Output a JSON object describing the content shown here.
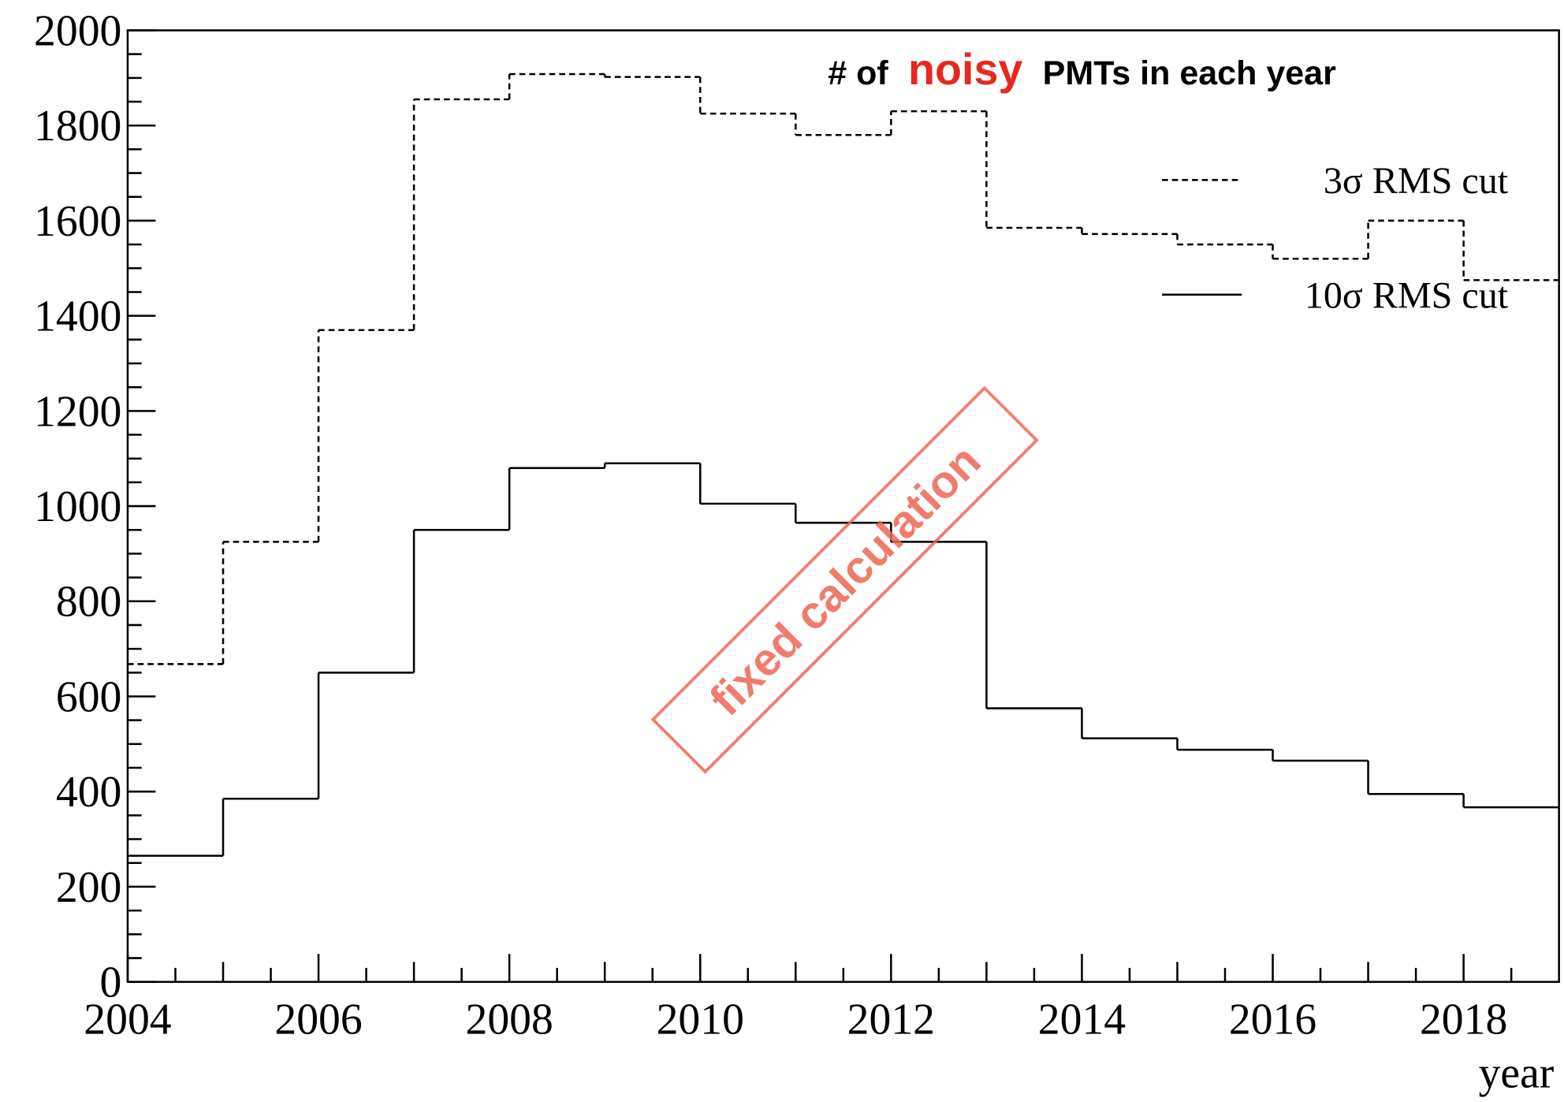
{
  "chart_data": {
    "type": "histogram",
    "title_parts": [
      {
        "text": "# of",
        "color": "#000000"
      },
      {
        "text": "noisy",
        "color": "#e8281e"
      },
      {
        "text": "PMTs in each year",
        "color": "#000000"
      }
    ],
    "xlabel": "year",
    "annotation": "fixed calculation",
    "annotation_color": "#ee6655",
    "bins": [
      2004,
      2005,
      2006,
      2007,
      2008,
      2009,
      2010,
      2011,
      2012,
      2013,
      2014,
      2015,
      2016,
      2017,
      2018,
      2019
    ],
    "series": [
      {
        "name": "3σ RMS cut",
        "color": "#000000",
        "dashed": true,
        "values": [
          668,
          925,
          1370,
          1855,
          1908,
          1902,
          1825,
          1780,
          1830,
          1585,
          1572,
          1550,
          1520,
          1600,
          1475
        ]
      },
      {
        "name": "10σ RMS cut",
        "color": "#000000",
        "dashed": false,
        "values": [
          265,
          385,
          650,
          950,
          1080,
          1090,
          1005,
          965,
          925,
          575,
          512,
          488,
          465,
          395,
          367
        ]
      }
    ],
    "xlim": [
      2004,
      2019
    ],
    "xticks": [
      2004,
      2006,
      2008,
      2010,
      2012,
      2014,
      2016,
      2018
    ],
    "ylim": [
      0,
      2000
    ],
    "yticks": [
      0,
      200,
      400,
      600,
      800,
      1000,
      1200,
      1400,
      1600,
      1800,
      2000
    ],
    "legend": "upper right"
  }
}
